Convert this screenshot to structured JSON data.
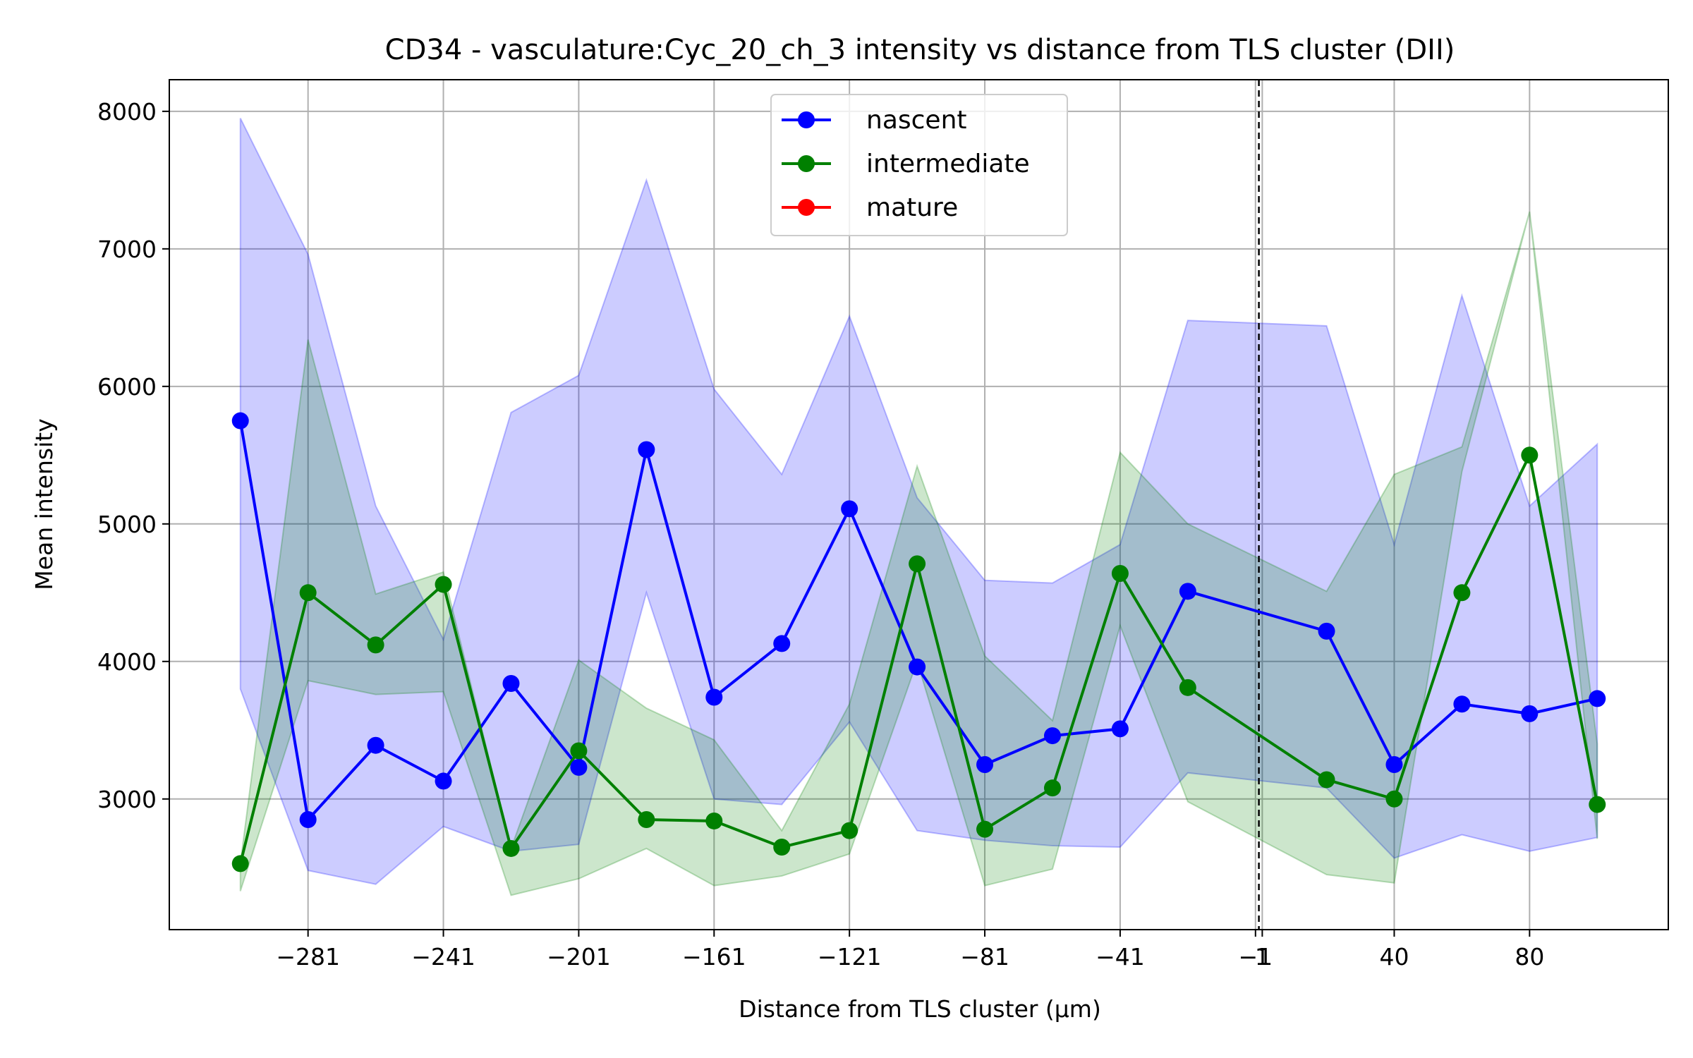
{
  "chart_data": {
    "type": "line",
    "title": "CD34 - vasculature:Cyc_20_ch_3 intensity vs distance from TLS cluster (DII)",
    "xlabel": "Distance from TLS cluster (μm)",
    "ylabel": "Mean intensity",
    "xlim": [
      -322,
      121
    ],
    "ylim": [
      2050,
      8230
    ],
    "x_ticks": [
      -281,
      -241,
      -201,
      -161,
      -121,
      -81,
      -41,
      -1,
      1,
      40,
      80
    ],
    "x_tick_labels": [
      "−281",
      "−241",
      "−201",
      "−161",
      "−121",
      "−81",
      "−41",
      "−1",
      "1",
      "40",
      "80"
    ],
    "y_ticks": [
      3000,
      4000,
      5000,
      6000,
      7000,
      8000
    ],
    "y_tick_labels": [
      "3000",
      "4000",
      "5000",
      "6000",
      "7000",
      "8000"
    ],
    "grid": true,
    "vline_x": 0,
    "legend_position": "top-center",
    "series": [
      {
        "name": "nascent",
        "color": "#0000ff",
        "fill_color": "#0000ff",
        "x": [
          -301,
          -281,
          -261,
          -241,
          -221,
          -201,
          -181,
          -161,
          -141,
          -121,
          -101,
          -81,
          -61,
          -41,
          -21,
          20,
          40,
          60,
          80,
          100
        ],
        "y": [
          5750,
          2850,
          3390,
          3130,
          3840,
          3230,
          5540,
          3740,
          4130,
          5110,
          3960,
          3250,
          3460,
          3510,
          4510,
          4220,
          3250,
          3690,
          3620,
          3730
        ],
        "lower": [
          3800,
          2480,
          2380,
          2800,
          2620,
          2670,
          4500,
          3000,
          2960,
          3560,
          2770,
          2700,
          2660,
          2650,
          3190,
          3080,
          2570,
          2740,
          2620,
          2720
        ],
        "upper": [
          7950,
          6960,
          5130,
          4160,
          5810,
          6080,
          7500,
          5980,
          5360,
          6510,
          5190,
          4590,
          4570,
          4850,
          6480,
          6440,
          4850,
          6660,
          5130,
          5580
        ]
      },
      {
        "name": "intermediate",
        "color": "#008000",
        "fill_color": "#008000",
        "x": [
          -301,
          -281,
          -261,
          -241,
          -221,
          -201,
          -181,
          -161,
          -141,
          -121,
          -101,
          -81,
          -61,
          -41,
          -21,
          20,
          40,
          60,
          80,
          100
        ],
        "y": [
          2530,
          4500,
          4120,
          4560,
          2640,
          3350,
          2850,
          2840,
          2650,
          2770,
          4710,
          2780,
          3080,
          4640,
          3810,
          3140,
          3000,
          4500,
          5500,
          2960
        ],
        "lower": [
          2330,
          3860,
          3760,
          3780,
          2300,
          2420,
          2640,
          2370,
          2440,
          2600,
          4000,
          2370,
          2490,
          4260,
          2980,
          2450,
          2390,
          5380,
          7270,
          2710
        ],
        "upper": [
          2530,
          6340,
          4490,
          4650,
          2640,
          4010,
          3660,
          3430,
          2770,
          3690,
          5420,
          4040,
          3570,
          5520,
          5000,
          4510,
          5360,
          5560,
          7270,
          3400
        ]
      },
      {
        "name": "mature",
        "color": "#ff0000",
        "x": [],
        "y": []
      }
    ]
  }
}
